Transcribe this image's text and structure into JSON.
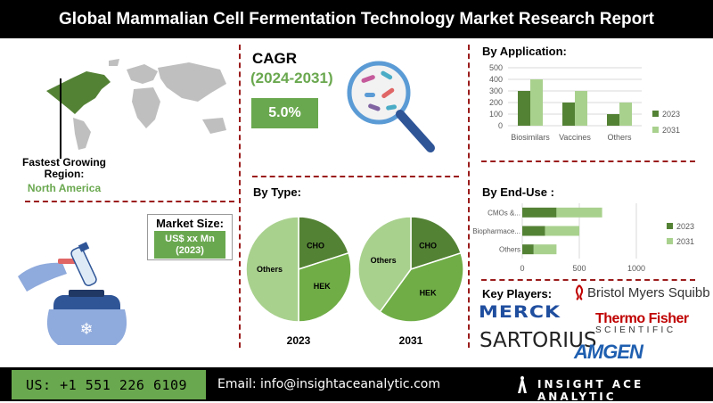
{
  "title": "Global Mammalian Cell Fermentation Technology Market Research Report",
  "region": {
    "label": "Fastest Growing Region:",
    "value": "North America"
  },
  "cagr": {
    "label": "CAGR",
    "period": "(2024-2031)",
    "value": "5.0%"
  },
  "market_size": {
    "label": "Market Size:",
    "value": "US$ xx Mn",
    "year": "(2023)"
  },
  "by_type": {
    "label": "By Type:"
  },
  "by_application": {
    "label": "By Application:"
  },
  "by_end_use": {
    "label": "By End-Use :"
  },
  "key_players": {
    "label": "Key Players:",
    "logos": [
      "Bristol Myers Squibb",
      "MERCK",
      "Thermo Fisher",
      "SCIENTIFIC",
      "SARTORIUS",
      "AMGEN"
    ]
  },
  "footer": {
    "phone": "US: +1 551 226 6109",
    "email": "Email: info@insightaceanalytic.com",
    "brand": "INSIGHT ACE ANALYTIC"
  },
  "colors": {
    "dark_green": "#548235",
    "mid_green": "#70ad47",
    "light_green": "#a9d18e",
    "banner_green": "#6aa84f",
    "divider_red": "#9b1c1c"
  },
  "chart_data": [
    {
      "type": "bar",
      "title": "By Application:",
      "categories": [
        "Biosimilars",
        "Vaccines",
        "Others"
      ],
      "series": [
        {
          "name": "2023",
          "values": [
            300,
            200,
            100
          ]
        },
        {
          "name": "2031",
          "values": [
            400,
            300,
            200
          ]
        }
      ],
      "ylim": [
        0,
        500
      ],
      "yticks": [
        "0",
        "100",
        "200",
        "300",
        "400",
        "500"
      ],
      "legend": "right",
      "grid": true
    },
    {
      "type": "bar",
      "orientation": "horizontal",
      "title": "By End-Use :",
      "categories": [
        "CMOs &...",
        "Biopharmace...",
        "Others"
      ],
      "series": [
        {
          "name": "2023",
          "values": [
            300,
            200,
            100
          ]
        },
        {
          "name": "2031",
          "values": [
            400,
            300,
            200
          ]
        }
      ],
      "xlim": [
        0,
        1000
      ],
      "xticks": [
        "0",
        "500",
        "1000"
      ],
      "legend": "right",
      "grid": true
    },
    {
      "type": "pie",
      "title": "2023",
      "labels": [
        "CHO",
        "HEK",
        "Others"
      ],
      "values": [
        20,
        30,
        50
      ]
    },
    {
      "type": "pie",
      "title": "2031",
      "labels": [
        "CHO",
        "HEK",
        "Others"
      ],
      "values": [
        20,
        40,
        40
      ]
    }
  ]
}
